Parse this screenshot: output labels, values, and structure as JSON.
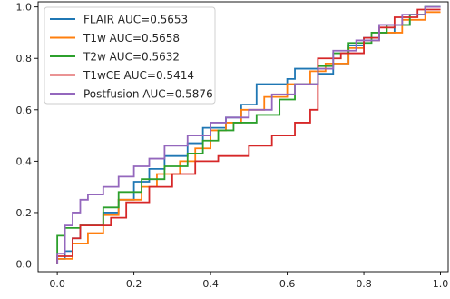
{
  "chart_data": {
    "type": "line",
    "title": "",
    "xlabel": "",
    "ylabel": "",
    "xlim": [
      -0.05,
      1.02
    ],
    "ylim": [
      -0.03,
      1.02
    ],
    "xticks": [
      0.0,
      0.2,
      0.4,
      0.6,
      0.8,
      1.0
    ],
    "yticks": [
      0.0,
      0.2,
      0.4,
      0.6,
      0.8,
      1.0
    ],
    "xtick_labels": [
      "0.0",
      "0.2",
      "0.4",
      "0.6",
      "0.8",
      "1.0"
    ],
    "ytick_labels": [
      "0.0",
      "0.2",
      "0.4",
      "0.6",
      "0.8",
      "1.0"
    ],
    "grid": false,
    "legend_position": "upper-left",
    "series": [
      {
        "name": "FLAIR AUC=0.5653",
        "color": "#1f77b4",
        "x": [
          0.0,
          0.0,
          0.02,
          0.02,
          0.04,
          0.04,
          0.06,
          0.06,
          0.12,
          0.12,
          0.16,
          0.16,
          0.2,
          0.2,
          0.24,
          0.24,
          0.28,
          0.28,
          0.34,
          0.34,
          0.38,
          0.38,
          0.44,
          0.44,
          0.48,
          0.48,
          0.52,
          0.52,
          0.56,
          0.56,
          0.6,
          0.6,
          0.62,
          0.62,
          0.68,
          0.68,
          0.72,
          0.72,
          0.76,
          0.76,
          0.8,
          0.8,
          0.84,
          0.84,
          0.88,
          0.88,
          0.92,
          0.92,
          0.96,
          0.96,
          1.0
        ],
        "y": [
          0.0,
          0.02,
          0.02,
          0.05,
          0.05,
          0.1,
          0.1,
          0.15,
          0.15,
          0.2,
          0.2,
          0.25,
          0.25,
          0.32,
          0.32,
          0.37,
          0.37,
          0.42,
          0.42,
          0.47,
          0.47,
          0.53,
          0.53,
          0.57,
          0.57,
          0.62,
          0.62,
          0.7,
          0.7,
          0.7,
          0.7,
          0.72,
          0.72,
          0.76,
          0.76,
          0.74,
          0.74,
          0.78,
          0.78,
          0.85,
          0.85,
          0.88,
          0.88,
          0.9,
          0.9,
          0.93,
          0.93,
          0.97,
          0.97,
          1.0,
          1.0
        ]
      },
      {
        "name": "T1w AUC=0.5658",
        "color": "#ff7f0e",
        "x": [
          0.0,
          0.0,
          0.04,
          0.04,
          0.08,
          0.08,
          0.12,
          0.12,
          0.16,
          0.16,
          0.22,
          0.22,
          0.26,
          0.26,
          0.32,
          0.32,
          0.36,
          0.36,
          0.4,
          0.4,
          0.44,
          0.44,
          0.48,
          0.48,
          0.54,
          0.54,
          0.6,
          0.6,
          0.66,
          0.66,
          0.7,
          0.7,
          0.76,
          0.76,
          0.8,
          0.8,
          0.84,
          0.84,
          0.9,
          0.9,
          0.96,
          0.96,
          1.0
        ],
        "y": [
          0.0,
          0.02,
          0.02,
          0.08,
          0.08,
          0.12,
          0.12,
          0.19,
          0.19,
          0.25,
          0.25,
          0.3,
          0.3,
          0.35,
          0.35,
          0.4,
          0.4,
          0.45,
          0.45,
          0.52,
          0.52,
          0.55,
          0.55,
          0.6,
          0.6,
          0.65,
          0.65,
          0.7,
          0.7,
          0.75,
          0.75,
          0.78,
          0.78,
          0.84,
          0.84,
          0.87,
          0.87,
          0.9,
          0.9,
          0.95,
          0.95,
          0.98,
          0.98
        ]
      },
      {
        "name": "T2w AUC=0.5632",
        "color": "#2ca02c",
        "x": [
          0.0,
          0.0,
          0.02,
          0.02,
          0.06,
          0.06,
          0.12,
          0.12,
          0.16,
          0.16,
          0.22,
          0.22,
          0.28,
          0.28,
          0.34,
          0.34,
          0.38,
          0.38,
          0.42,
          0.42,
          0.46,
          0.46,
          0.52,
          0.52,
          0.58,
          0.58,
          0.62,
          0.62,
          0.68,
          0.68,
          0.72,
          0.72,
          0.76,
          0.76,
          0.82,
          0.82,
          0.86,
          0.86,
          0.92,
          0.92,
          0.96,
          0.96,
          1.0
        ],
        "y": [
          0.0,
          0.11,
          0.11,
          0.14,
          0.14,
          0.15,
          0.15,
          0.22,
          0.22,
          0.28,
          0.28,
          0.33,
          0.33,
          0.38,
          0.38,
          0.43,
          0.43,
          0.48,
          0.48,
          0.52,
          0.52,
          0.55,
          0.55,
          0.58,
          0.58,
          0.64,
          0.64,
          0.7,
          0.7,
          0.77,
          0.77,
          0.82,
          0.82,
          0.86,
          0.86,
          0.9,
          0.9,
          0.93,
          0.93,
          0.97,
          0.97,
          1.0,
          1.0
        ]
      },
      {
        "name": "T1wCE AUC=0.5414",
        "color": "#d62728",
        "x": [
          0.0,
          0.0,
          0.04,
          0.04,
          0.06,
          0.06,
          0.14,
          0.14,
          0.18,
          0.18,
          0.24,
          0.24,
          0.3,
          0.3,
          0.36,
          0.36,
          0.42,
          0.42,
          0.5,
          0.5,
          0.56,
          0.56,
          0.62,
          0.62,
          0.66,
          0.66,
          0.68,
          0.68,
          0.74,
          0.74,
          0.8,
          0.8,
          0.84,
          0.84,
          0.88,
          0.88,
          0.94,
          0.94,
          1.0
        ],
        "y": [
          0.0,
          0.03,
          0.03,
          0.1,
          0.1,
          0.15,
          0.15,
          0.18,
          0.18,
          0.24,
          0.24,
          0.3,
          0.3,
          0.35,
          0.35,
          0.4,
          0.4,
          0.42,
          0.42,
          0.46,
          0.46,
          0.5,
          0.5,
          0.55,
          0.55,
          0.6,
          0.6,
          0.8,
          0.8,
          0.82,
          0.82,
          0.88,
          0.88,
          0.92,
          0.92,
          0.96,
          0.96,
          0.99,
          0.99
        ]
      },
      {
        "name": "Postfusion AUC=0.5876",
        "color": "#9467bd",
        "x": [
          0.0,
          0.0,
          0.02,
          0.02,
          0.04,
          0.04,
          0.06,
          0.06,
          0.08,
          0.08,
          0.12,
          0.12,
          0.16,
          0.16,
          0.2,
          0.2,
          0.24,
          0.24,
          0.28,
          0.28,
          0.34,
          0.34,
          0.4,
          0.4,
          0.44,
          0.44,
          0.5,
          0.5,
          0.56,
          0.56,
          0.62,
          0.62,
          0.68,
          0.68,
          0.72,
          0.72,
          0.78,
          0.78,
          0.84,
          0.84,
          0.9,
          0.9,
          0.96,
          0.96,
          1.0
        ],
        "y": [
          0.0,
          0.04,
          0.04,
          0.15,
          0.15,
          0.2,
          0.2,
          0.25,
          0.25,
          0.27,
          0.27,
          0.3,
          0.3,
          0.34,
          0.34,
          0.38,
          0.38,
          0.41,
          0.41,
          0.46,
          0.46,
          0.5,
          0.5,
          0.55,
          0.55,
          0.57,
          0.57,
          0.6,
          0.6,
          0.66,
          0.66,
          0.7,
          0.7,
          0.76,
          0.76,
          0.83,
          0.83,
          0.87,
          0.87,
          0.93,
          0.93,
          0.97,
          0.97,
          1.0,
          1.0
        ]
      }
    ]
  }
}
